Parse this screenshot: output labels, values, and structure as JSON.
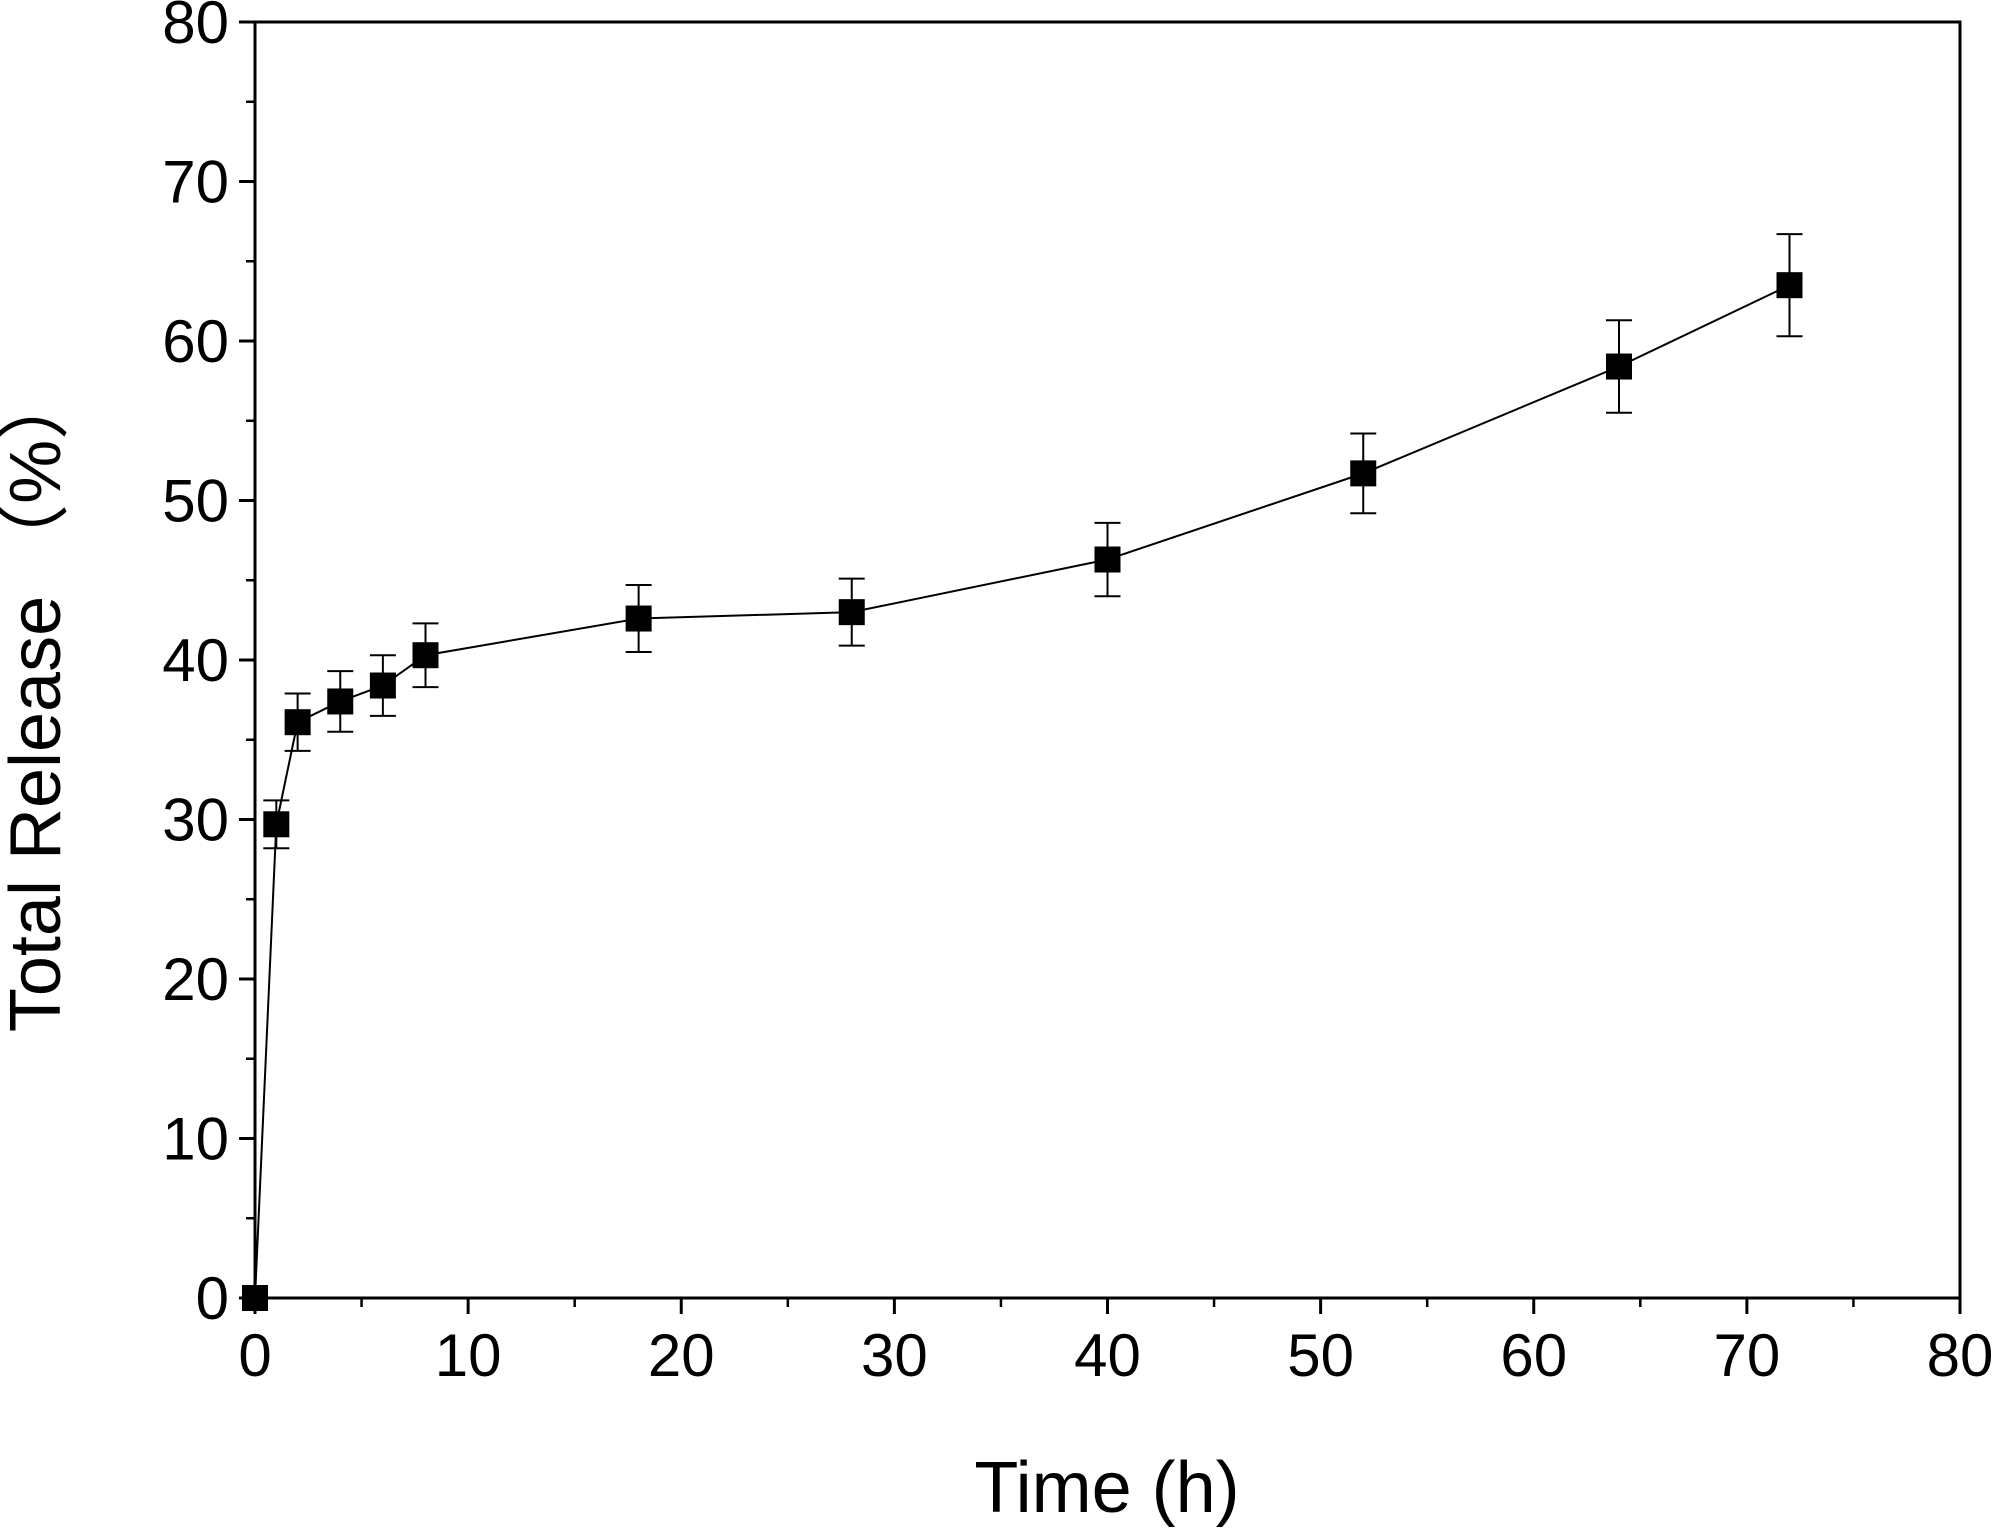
{
  "chart_data": {
    "type": "line",
    "title": "",
    "xlabel": "Time (h)",
    "ylabel": "Total Release （%）",
    "xlim": [
      0,
      80
    ],
    "ylim": [
      0,
      80
    ],
    "x_major_ticks": [
      0,
      10,
      20,
      30,
      40,
      50,
      60,
      70,
      80
    ],
    "y_major_ticks": [
      0,
      10,
      20,
      30,
      40,
      50,
      60,
      70,
      80
    ],
    "x_minor_step": 5,
    "y_minor_step": 5,
    "grid": false,
    "legend": "none",
    "colors": {
      "line": "#000000",
      "marker": "#000000",
      "axis": "#000000"
    },
    "marker": "square",
    "series": [
      {
        "name": "Total Release",
        "x": [
          0,
          1,
          2,
          4,
          6,
          8,
          18,
          28,
          40,
          52,
          64,
          72
        ],
        "y": [
          0,
          29.7,
          36.1,
          37.4,
          38.4,
          40.3,
          42.6,
          43.0,
          46.3,
          51.7,
          58.4,
          63.5
        ],
        "error": [
          0,
          1.5,
          1.8,
          1.9,
          1.9,
          2.0,
          2.1,
          2.1,
          2.3,
          2.5,
          2.9,
          3.2
        ]
      }
    ]
  }
}
